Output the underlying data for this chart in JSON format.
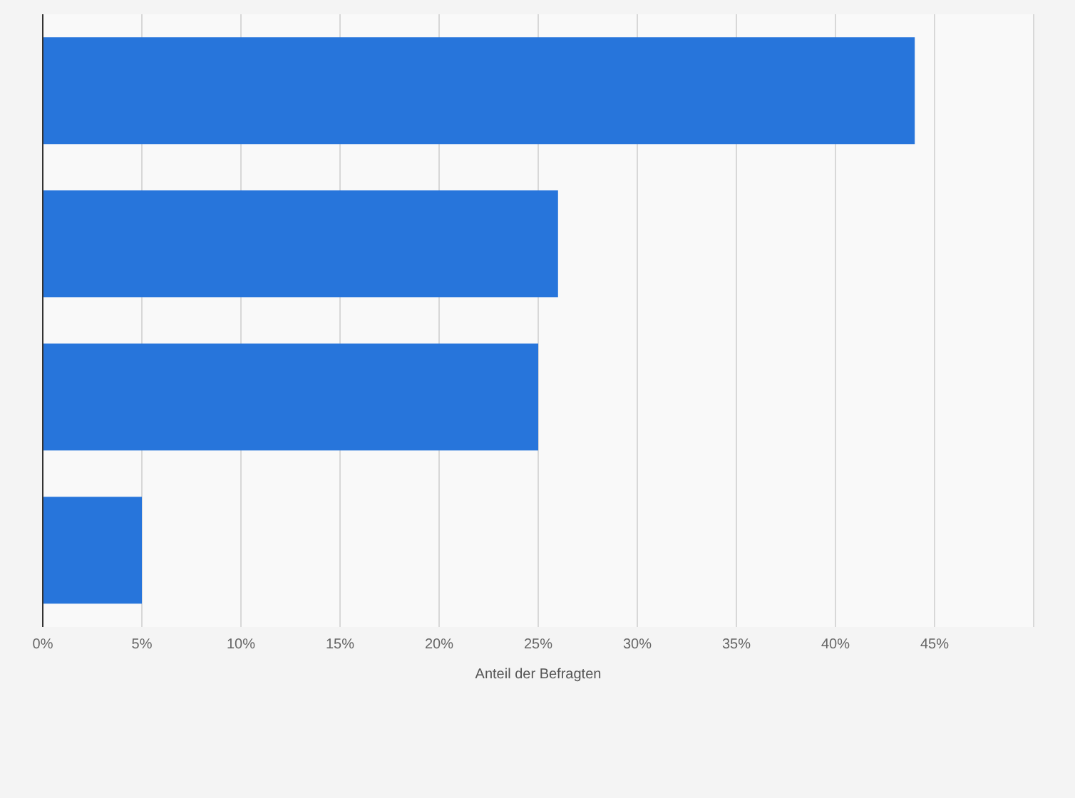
{
  "chart_data": {
    "type": "bar",
    "orientation": "horizontal",
    "xlabel": "Anteil der Befragten",
    "categories": [
      null,
      null,
      null,
      null
    ],
    "values": [
      44,
      26,
      25,
      5
    ],
    "color": "#2775db",
    "xlim": [
      0,
      50
    ],
    "xticks": [
      {
        "value": 0,
        "label": "0%"
      },
      {
        "value": 5,
        "label": "5%"
      },
      {
        "value": 10,
        "label": "10%"
      },
      {
        "value": 15,
        "label": "15%"
      },
      {
        "value": 20,
        "label": "20%"
      },
      {
        "value": 25,
        "label": "25%"
      },
      {
        "value": 30,
        "label": "30%"
      },
      {
        "value": 35,
        "label": "35%"
      },
      {
        "value": 40,
        "label": "40%"
      },
      {
        "value": 45,
        "label": "45%"
      },
      {
        "value": 50,
        "label": null
      }
    ],
    "grid": "x"
  }
}
